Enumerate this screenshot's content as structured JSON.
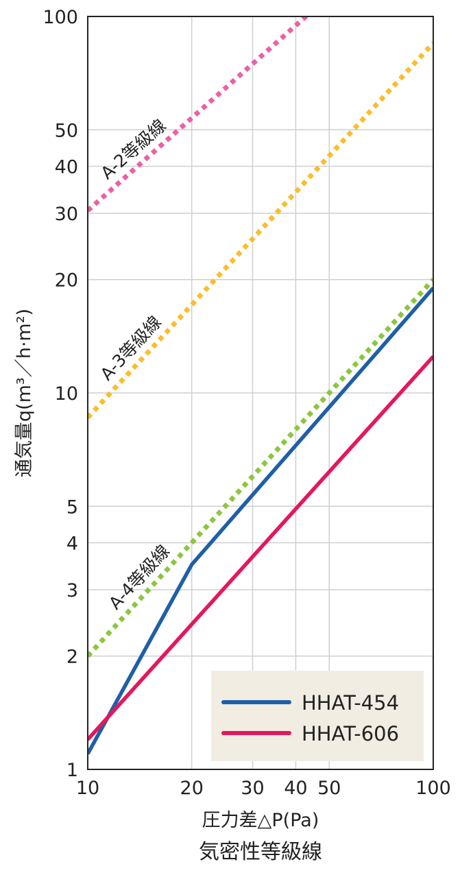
{
  "chart_data": {
    "type": "line",
    "title": "",
    "xlabel": "圧力差△P(Pa)",
    "caption": "気密性等級線",
    "ylabel": "通気量q(m³／h·m²)",
    "x_scale": "log",
    "y_scale": "log",
    "xlim": [
      10,
      100
    ],
    "ylim": [
      1,
      100
    ],
    "x_ticks": [
      10,
      20,
      30,
      40,
      50,
      100
    ],
    "x_tick_labels": [
      "10",
      "20",
      "30",
      "40",
      "50",
      "100"
    ],
    "y_ticks": [
      1,
      2,
      3,
      4,
      5,
      10,
      20,
      30,
      40,
      50,
      100
    ],
    "y_tick_labels": [
      "1",
      "2",
      "3",
      "4",
      "5",
      "10",
      "20",
      "30",
      "40",
      "50",
      "100"
    ],
    "grid": true,
    "legend_position": "bottom-right",
    "series": [
      {
        "name": "HHAT-454",
        "color": "#1f5fa8",
        "style": "solid",
        "x": [
          10,
          20,
          100
        ],
        "y": [
          1.1,
          3.5,
          19
        ]
      },
      {
        "name": "HHAT-606",
        "color": "#e5175c",
        "style": "solid",
        "x": [
          10,
          100
        ],
        "y": [
          1.2,
          12.5
        ]
      }
    ],
    "reference_lines": [
      {
        "label": "A-2等級線",
        "color": "#ec5fa6",
        "style": "dotted",
        "x": [
          10,
          100
        ],
        "y": [
          30.5,
          200
        ]
      },
      {
        "label": "A-3等級線",
        "color": "#fbbd2d",
        "style": "dotted",
        "x": [
          10,
          100
        ],
        "y": [
          8.6,
          85
        ]
      },
      {
        "label": "A-4等級線",
        "color": "#8cc63f",
        "style": "dotted",
        "x": [
          10,
          100
        ],
        "y": [
          2.0,
          20
        ]
      }
    ]
  }
}
